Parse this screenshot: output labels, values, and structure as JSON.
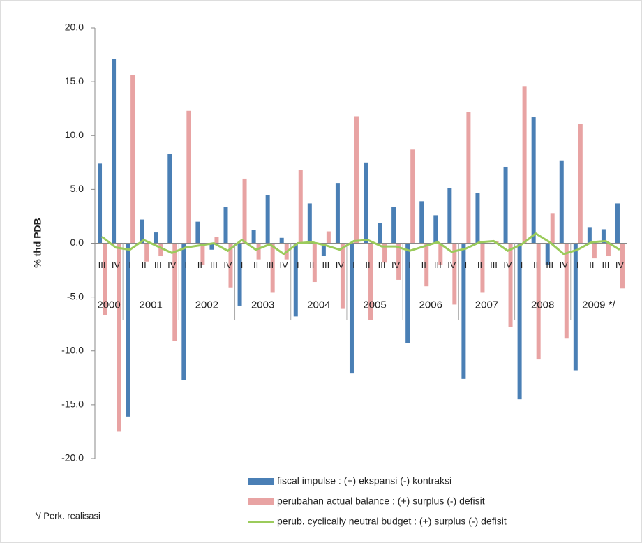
{
  "chart_data": {
    "type": "bar",
    "y_label": "% thd PDB",
    "note": "*/ Perk. realisasi",
    "categories": [
      "III",
      "IV",
      "I",
      "II",
      "III",
      "IV",
      "I",
      "II",
      "III",
      "IV",
      "I",
      "II",
      "III",
      "IV",
      "I",
      "II",
      "III",
      "IV",
      "I",
      "II",
      "III",
      "IV",
      "I",
      "II",
      "III",
      "IV",
      "I",
      "II",
      "III",
      "IV",
      "I",
      "II",
      "III",
      "IV",
      "I",
      "II",
      "III",
      "IV"
    ],
    "years": [
      "2000",
      "2001",
      "2002",
      "2003",
      "2004",
      "2005",
      "2006",
      "2007",
      "2008",
      "2009 */"
    ],
    "ylim": [
      -20,
      20
    ],
    "yticks": [
      {
        "value": 20,
        "label": "20.0"
      },
      {
        "value": 15,
        "label": "15.0"
      },
      {
        "value": 10,
        "label": "10.0"
      },
      {
        "value": 5,
        "label": "5.0"
      },
      {
        "value": 0,
        "label": "0.0"
      },
      {
        "value": -5,
        "label": "-5.0"
      },
      {
        "value": -10,
        "label": "-10.0"
      },
      {
        "value": -15,
        "label": "-15.0"
      },
      {
        "value": -20,
        "label": "-20.0"
      }
    ],
    "series": [
      {
        "name": "fiscal impulse : (+) ekspansi (-) kontraksi",
        "color": "#4a7fb5",
        "kind": "bar",
        "values": [
          7.4,
          17.1,
          -16.1,
          2.2,
          1.0,
          8.3,
          -12.7,
          2.0,
          -0.6,
          3.4,
          -5.8,
          1.2,
          4.5,
          0.5,
          -6.8,
          3.7,
          -1.2,
          5.6,
          -12.1,
          7.5,
          1.9,
          3.4,
          -9.3,
          3.9,
          2.6,
          5.1,
          -12.6,
          4.7,
          -0.1,
          7.1,
          -14.5,
          11.7,
          -2.0,
          7.7,
          -11.8,
          1.5,
          1.3,
          3.7
        ]
      },
      {
        "name": "perubahan actual balance : (+) surplus (-) defisit",
        "color": "#e8a3a3",
        "kind": "bar",
        "values": [
          -6.7,
          -17.5,
          15.6,
          -1.7,
          -1.2,
          -9.1,
          12.3,
          -2.0,
          0.6,
          -4.1,
          6.0,
          -1.5,
          -4.6,
          -1.5,
          6.8,
          -3.6,
          1.1,
          -6.1,
          11.8,
          -7.1,
          -1.8,
          -3.4,
          8.7,
          -4.0,
          -2.0,
          -5.7,
          12.2,
          -4.6,
          0.2,
          -7.8,
          14.6,
          -10.8,
          2.8,
          -8.8,
          11.1,
          -1.4,
          -1.2,
          -4.2
        ]
      },
      {
        "name": "perub. cyclically neutral  budget : (+) surplus (-) defisit",
        "color": "#9bcb5b",
        "kind": "line",
        "values": [
          0.6,
          -0.4,
          -0.6,
          0.3,
          -0.3,
          -0.9,
          -0.4,
          -0.2,
          0.0,
          -0.7,
          0.3,
          -0.6,
          -0.1,
          -1.0,
          0.0,
          0.1,
          -0.2,
          -0.6,
          0.2,
          0.3,
          -0.3,
          -0.3,
          -0.7,
          -0.3,
          0.1,
          -0.8,
          -0.5,
          0.1,
          0.2,
          -0.7,
          -0.1,
          0.9,
          0.1,
          -1.0,
          -0.6,
          0.1,
          0.2,
          -0.6
        ]
      }
    ]
  }
}
